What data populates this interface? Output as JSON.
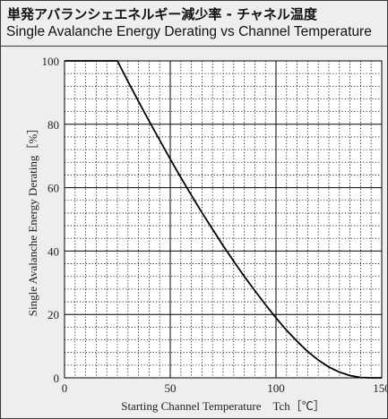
{
  "title_jp": "単発アバランシェエネルギー減少率 - チャネル温度",
  "title_en": "Single Avalanche Energy Derating vs Channel Temperature",
  "chart_data": {
    "type": "line",
    "xlabel": "Starting Channel Temperature　Tch［℃］",
    "ylabel": "Single Avalanche Energy Derating［%］",
    "xlim": [
      0,
      150
    ],
    "ylim": [
      0,
      100
    ],
    "x_ticks": [
      "0",
      "50",
      "100",
      "150"
    ],
    "y_ticks": [
      "0",
      "20",
      "40",
      "60",
      "80",
      "100"
    ],
    "grid": true,
    "series": [
      {
        "x": [
          0,
          25,
          30,
          35,
          40,
          45,
          50,
          55,
          60,
          65,
          70,
          75,
          80,
          85,
          90,
          95,
          100,
          105,
          110,
          115,
          120,
          125,
          130,
          135,
          140,
          145,
          150
        ],
        "values": [
          100,
          100,
          93.5,
          87.2,
          81.0,
          75.0,
          69.0,
          63.2,
          57.6,
          52.1,
          46.9,
          41.7,
          36.8,
          32.0,
          27.5,
          23.1,
          18.9,
          15.0,
          11.5,
          8.3,
          5.6,
          3.4,
          1.8,
          0.7,
          0.1,
          0,
          0
        ]
      }
    ],
    "line_color": "#000000",
    "grid_color": "#000000"
  }
}
